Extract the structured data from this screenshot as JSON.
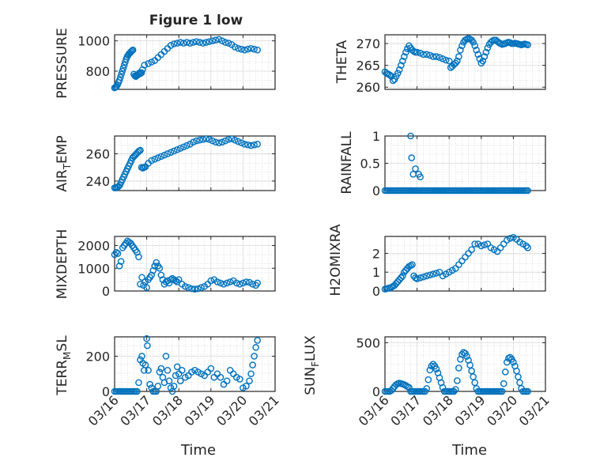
{
  "figure": {
    "title": "Figure 1 low",
    "xlabel": "Time",
    "x_tick_labels": [
      "03/16",
      "03/17",
      "03/18",
      "03/19",
      "03/20",
      "03/21"
    ],
    "colors": {
      "marker": "#0072bd",
      "axis": "#262626",
      "grid": "#c8c8c8",
      "background": "#ffffff"
    }
  },
  "chart_data": [
    {
      "type": "scatter",
      "id": "pressure",
      "ylabel": "PRESSURE",
      "yticks": [
        800,
        1000
      ],
      "ylim": [
        680,
        1040
      ],
      "xlim": [
        0,
        5
      ],
      "grid": true,
      "x": [
        0.0,
        0.03,
        0.06,
        0.09,
        0.12,
        0.15,
        0.18,
        0.21,
        0.24,
        0.27,
        0.3,
        0.33,
        0.36,
        0.39,
        0.42,
        0.45,
        0.48,
        0.51,
        0.54,
        0.57,
        0.6,
        0.63,
        0.66,
        0.69,
        0.72,
        0.75,
        0.78,
        0.81,
        0.84,
        0.87,
        0.93,
        1.05,
        1.15,
        1.25,
        1.35,
        1.45,
        1.55,
        1.65,
        1.75,
        1.85,
        1.95,
        2.05,
        2.15,
        2.25,
        2.35,
        2.45,
        2.55,
        2.65,
        2.75,
        2.85,
        2.95,
        3.05,
        3.15,
        3.25,
        3.35,
        3.45,
        3.55,
        3.65,
        3.75,
        3.85,
        3.95,
        4.05,
        4.15,
        4.25,
        4.35,
        4.45
      ],
      "y": [
        690,
        695,
        700,
        710,
        725,
        740,
        760,
        780,
        800,
        820,
        840,
        860,
        880,
        895,
        905,
        915,
        920,
        928,
        935,
        940,
        780,
        770,
        765,
        770,
        775,
        780,
        790,
        785,
        790,
        810,
        840,
        850,
        860,
        870,
        890,
        910,
        930,
        950,
        970,
        980,
        985,
        990,
        985,
        990,
        985,
        990,
        995,
        990,
        985,
        990,
        995,
        1000,
        1005,
        1010,
        1000,
        990,
        985,
        975,
        960,
        950,
        945,
        940,
        945,
        950,
        945,
        940
      ]
    },
    {
      "type": "scatter",
      "id": "theta",
      "ylabel": "THETA",
      "yticks": [
        260,
        265,
        270
      ],
      "ylim": [
        259.5,
        272
      ],
      "xlim": [
        0,
        5
      ],
      "grid": true,
      "x": [
        0.0,
        0.05,
        0.1,
        0.15,
        0.2,
        0.25,
        0.3,
        0.35,
        0.4,
        0.45,
        0.5,
        0.55,
        0.6,
        0.65,
        0.7,
        0.75,
        0.8,
        0.85,
        0.9,
        0.95,
        1.0,
        1.1,
        1.2,
        1.3,
        1.4,
        1.5,
        1.6,
        1.7,
        1.8,
        1.9,
        2.0,
        2.05,
        2.1,
        2.15,
        2.2,
        2.25,
        2.3,
        2.35,
        2.4,
        2.45,
        2.5,
        2.55,
        2.6,
        2.65,
        2.7,
        2.75,
        2.8,
        2.85,
        2.9,
        2.95,
        3.0,
        3.05,
        3.1,
        3.15,
        3.2,
        3.25,
        3.3,
        3.35,
        3.4,
        3.45,
        3.5,
        3.55,
        3.6,
        3.65,
        3.7,
        3.75,
        3.8,
        3.85,
        3.9,
        3.95,
        4.0,
        4.05,
        4.1,
        4.15,
        4.2,
        4.25,
        4.3,
        4.35,
        4.4,
        4.45
      ],
      "y": [
        263.5,
        263.2,
        263.0,
        262.8,
        262.5,
        261.5,
        261.8,
        262.5,
        263.2,
        264.0,
        265.0,
        266.0,
        267.0,
        268.0,
        268.8,
        269.5,
        269.0,
        268.5,
        268.2,
        268.0,
        268.0,
        267.8,
        267.5,
        267.5,
        267.3,
        267.0,
        267.0,
        266.8,
        266.5,
        266.2,
        266.0,
        264.5,
        264.8,
        265.2,
        265.5,
        266.0,
        267.0,
        268.5,
        269.5,
        270.3,
        270.8,
        271.0,
        271.2,
        271.0,
        270.8,
        270.3,
        269.5,
        268.5,
        267.5,
        266.5,
        265.5,
        266.0,
        267.0,
        268.0,
        269.0,
        269.8,
        270.3,
        270.6,
        270.8,
        270.8,
        270.5,
        270.2,
        270.0,
        269.8,
        269.9,
        270.0,
        270.2,
        270.3,
        270.2,
        270.0,
        270.0,
        270.1,
        270.0,
        269.9,
        269.8,
        269.7,
        269.8,
        269.9,
        269.8,
        269.7
      ]
    },
    {
      "type": "scatter",
      "id": "air_temp",
      "ylabel": "AIR_TEMP",
      "yticks": [
        240,
        260
      ],
      "ylim": [
        233,
        273
      ],
      "xlim": [
        0,
        5
      ],
      "grid": true,
      "x": [
        0.0,
        0.04,
        0.08,
        0.12,
        0.16,
        0.2,
        0.24,
        0.28,
        0.32,
        0.36,
        0.4,
        0.44,
        0.48,
        0.52,
        0.56,
        0.6,
        0.64,
        0.68,
        0.72,
        0.76,
        0.8,
        0.84,
        0.88,
        0.92,
        0.96,
        1.05,
        1.15,
        1.25,
        1.35,
        1.45,
        1.55,
        1.65,
        1.75,
        1.85,
        1.95,
        2.05,
        2.15,
        2.25,
        2.35,
        2.45,
        2.55,
        2.65,
        2.75,
        2.85,
        2.95,
        3.05,
        3.15,
        3.25,
        3.35,
        3.45,
        3.55,
        3.65,
        3.75,
        3.85,
        3.95,
        4.05,
        4.15,
        4.25,
        4.35,
        4.45
      ],
      "y": [
        235,
        235,
        235.5,
        236,
        237,
        239,
        241,
        243,
        245,
        247,
        249,
        251,
        253,
        255,
        257,
        258,
        259,
        260,
        261,
        262,
        262.5,
        250,
        249.5,
        250,
        250.5,
        253,
        255,
        256,
        257,
        258,
        259,
        260,
        261,
        262,
        263,
        264,
        265,
        266,
        267,
        268.5,
        269.5,
        270,
        270.5,
        271,
        270.5,
        269.5,
        268.5,
        268,
        268.5,
        269.5,
        270.5,
        271,
        270,
        269,
        268,
        267,
        266.5,
        266,
        266.5,
        267
      ]
    },
    {
      "type": "scatter",
      "id": "rainfall",
      "ylabel": "RAINFALL",
      "yticks": [
        0,
        0.5,
        1
      ],
      "ylim": [
        0,
        1
      ],
      "xlim": [
        0,
        5
      ],
      "grid": true,
      "x": [
        0.0,
        0.05,
        0.1,
        0.15,
        0.2,
        0.25,
        0.3,
        0.35,
        0.4,
        0.45,
        0.5,
        0.55,
        0.6,
        0.65,
        0.7,
        0.75,
        0.8,
        0.85,
        0.9,
        0.95,
        1.0,
        1.05,
        1.1,
        1.15,
        1.2,
        1.25,
        1.3,
        1.35,
        1.4,
        1.45,
        1.5,
        1.55,
        1.6,
        1.65,
        1.7,
        1.75,
        1.8,
        1.85,
        1.9,
        1.95,
        2.0,
        2.05,
        2.1,
        2.15,
        2.2,
        2.25,
        2.3,
        2.35,
        2.4,
        2.45,
        2.5,
        2.55,
        2.6,
        2.65,
        2.7,
        2.75,
        2.8,
        2.85,
        2.9,
        2.95,
        3.0,
        3.05,
        3.1,
        3.15,
        3.2,
        3.25,
        3.3,
        3.35,
        3.4,
        3.45,
        3.5,
        3.55,
        3.6,
        3.65,
        3.7,
        3.75,
        3.8,
        3.85,
        3.9,
        3.95,
        4.0,
        4.05,
        4.1,
        4.15,
        4.2,
        4.25,
        4.3,
        4.35,
        4.4,
        4.45,
        0.8,
        0.83,
        0.88,
        0.95,
        1.05,
        1.1
      ],
      "y": [
        0,
        0,
        0,
        0,
        0,
        0,
        0,
        0,
        0,
        0,
        0,
        0,
        0,
        0,
        0,
        0,
        0,
        0,
        0,
        0,
        0,
        0,
        0,
        0,
        0,
        0,
        0,
        0,
        0,
        0,
        0,
        0,
        0,
        0,
        0,
        0,
        0,
        0,
        0,
        0,
        0,
        0,
        0,
        0,
        0,
        0,
        0,
        0,
        0,
        0,
        0,
        0,
        0,
        0,
        0,
        0,
        0,
        0,
        0,
        0,
        0,
        0,
        0,
        0,
        0,
        0,
        0,
        0,
        0,
        0,
        0,
        0,
        0,
        0,
        0,
        0,
        0,
        0,
        0,
        0,
        0,
        0,
        0,
        0,
        0,
        0,
        0,
        0,
        0,
        0,
        1.0,
        0.6,
        0.3,
        0.4,
        0.3,
        0.25
      ]
    },
    {
      "type": "scatter",
      "id": "mixdepth",
      "ylabel": "MIXDEPTH",
      "yticks": [
        0,
        1000,
        2000
      ],
      "ylim": [
        0,
        2400
      ],
      "xlim": [
        0,
        5
      ],
      "grid": true,
      "x": [
        0.0,
        0.05,
        0.1,
        0.15,
        0.2,
        0.25,
        0.3,
        0.35,
        0.4,
        0.45,
        0.5,
        0.55,
        0.6,
        0.65,
        0.7,
        0.75,
        0.8,
        0.85,
        0.9,
        0.95,
        1.0,
        1.05,
        1.1,
        1.15,
        1.2,
        1.25,
        1.3,
        1.35,
        1.4,
        1.45,
        1.5,
        1.55,
        1.6,
        1.65,
        1.7,
        1.75,
        1.8,
        1.85,
        1.9,
        1.95,
        2.0,
        2.1,
        2.2,
        2.3,
        2.4,
        2.5,
        2.6,
        2.7,
        2.8,
        2.9,
        3.0,
        3.1,
        3.2,
        3.3,
        3.4,
        3.5,
        3.6,
        3.7,
        3.8,
        3.9,
        4.0,
        4.1,
        4.2,
        4.3,
        4.4,
        4.45
      ],
      "y": [
        1600,
        1700,
        1650,
        1100,
        1300,
        1900,
        2000,
        2100,
        2200,
        2150,
        2100,
        2000,
        1900,
        1800,
        1700,
        1500,
        300,
        600,
        250,
        400,
        150,
        500,
        600,
        700,
        900,
        1100,
        1250,
        1100,
        1000,
        700,
        500,
        300,
        400,
        450,
        350,
        500,
        550,
        500,
        450,
        400,
        500,
        300,
        200,
        150,
        100,
        80,
        100,
        150,
        200,
        300,
        450,
        500,
        400,
        350,
        300,
        350,
        400,
        450,
        350,
        300,
        350,
        400,
        380,
        300,
        250,
        350
      ]
    },
    {
      "type": "scatter",
      "id": "h2omixra",
      "ylabel": "H2OMIXRA",
      "yticks": [
        0,
        1,
        2
      ],
      "ylim": [
        0,
        2.9
      ],
      "xlim": [
        0,
        5
      ],
      "grid": true,
      "x": [
        0.0,
        0.05,
        0.1,
        0.15,
        0.2,
        0.25,
        0.3,
        0.35,
        0.4,
        0.45,
        0.5,
        0.55,
        0.6,
        0.65,
        0.7,
        0.75,
        0.8,
        0.85,
        0.9,
        0.95,
        1.0,
        1.1,
        1.2,
        1.3,
        1.4,
        1.5,
        1.6,
        1.7,
        1.8,
        1.9,
        2.0,
        2.1,
        2.2,
        2.3,
        2.4,
        2.5,
        2.6,
        2.7,
        2.8,
        2.9,
        3.0,
        3.1,
        3.2,
        3.3,
        3.4,
        3.5,
        3.6,
        3.7,
        3.8,
        3.9,
        4.0,
        4.1,
        4.2,
        4.3,
        4.4,
        4.45
      ],
      "y": [
        0.1,
        0.12,
        0.15,
        0.15,
        0.2,
        0.25,
        0.3,
        0.4,
        0.5,
        0.6,
        0.7,
        0.8,
        1.0,
        1.1,
        1.2,
        1.3,
        1.35,
        1.4,
        0.8,
        0.7,
        0.65,
        0.7,
        0.75,
        0.8,
        0.85,
        0.9,
        0.95,
        1.0,
        0.8,
        0.9,
        1.0,
        1.1,
        1.2,
        1.4,
        1.6,
        1.8,
        2.0,
        2.2,
        2.5,
        2.5,
        2.4,
        2.45,
        2.5,
        2.3,
        2.2,
        2.1,
        2.3,
        2.5,
        2.7,
        2.8,
        2.85,
        2.75,
        2.6,
        2.5,
        2.4,
        2.3
      ]
    },
    {
      "type": "scatter",
      "id": "terr_msl",
      "ylabel": "TERR_MSL",
      "yticks": [
        0,
        200
      ],
      "ylim": [
        0,
        310
      ],
      "xlim": [
        0,
        5
      ],
      "grid": true,
      "x": [
        0.0,
        0.05,
        0.1,
        0.15,
        0.2,
        0.25,
        0.3,
        0.35,
        0.4,
        0.45,
        0.5,
        0.55,
        0.6,
        0.65,
        0.7,
        0.75,
        0.8,
        0.85,
        0.88,
        0.92,
        0.96,
        1.0,
        1.02,
        1.05,
        1.1,
        1.15,
        1.2,
        1.25,
        1.3,
        1.35,
        1.4,
        1.45,
        1.5,
        1.55,
        1.6,
        1.65,
        1.7,
        1.75,
        1.8,
        1.85,
        1.9,
        1.95,
        2.0,
        2.05,
        2.1,
        2.2,
        2.3,
        2.4,
        2.5,
        2.6,
        2.7,
        2.8,
        2.9,
        3.0,
        3.1,
        3.2,
        3.3,
        3.4,
        3.5,
        3.6,
        3.7,
        3.8,
        3.9,
        4.0,
        4.1,
        4.2,
        4.25,
        4.3,
        4.35,
        4.4,
        4.45
      ],
      "y": [
        0,
        0,
        0,
        0,
        0,
        0,
        0,
        0,
        0,
        0,
        0,
        0,
        0,
        0,
        0,
        50,
        180,
        200,
        160,
        120,
        150,
        300,
        260,
        120,
        40,
        20,
        0,
        0,
        0,
        30,
        110,
        130,
        80,
        50,
        200,
        120,
        60,
        20,
        0,
        30,
        90,
        140,
        100,
        60,
        120,
        80,
        90,
        110,
        120,
        110,
        100,
        90,
        110,
        130,
        80,
        100,
        80,
        40,
        60,
        120,
        100,
        80,
        70,
        20,
        30,
        60,
        100,
        150,
        200,
        250,
        290
      ]
    },
    {
      "type": "scatter",
      "id": "sun_flux",
      "ylabel": "SUN_FLUX",
      "yticks": [
        0,
        500
      ],
      "ylim": [
        0,
        560
      ],
      "xlim": [
        0,
        5
      ],
      "grid": true,
      "x": [
        0.0,
        0.05,
        0.1,
        0.15,
        0.2,
        0.25,
        0.3,
        0.35,
        0.4,
        0.45,
        0.5,
        0.55,
        0.6,
        0.65,
        0.7,
        0.75,
        0.8,
        0.85,
        0.9,
        0.95,
        1.0,
        1.05,
        1.1,
        1.15,
        1.2,
        1.25,
        1.3,
        1.35,
        1.4,
        1.45,
        1.5,
        1.55,
        1.6,
        1.65,
        1.7,
        1.75,
        1.8,
        1.85,
        1.9,
        1.95,
        2.0,
        2.05,
        2.1,
        2.15,
        2.2,
        2.25,
        2.3,
        2.35,
        2.4,
        2.45,
        2.5,
        2.55,
        2.6,
        2.65,
        2.7,
        2.75,
        2.8,
        2.85,
        2.9,
        2.95,
        3.0,
        3.05,
        3.1,
        3.15,
        3.2,
        3.25,
        3.3,
        3.35,
        3.4,
        3.45,
        3.5,
        3.55,
        3.6,
        3.65,
        3.7,
        3.75,
        3.8,
        3.85,
        3.9,
        3.95,
        4.0,
        4.05,
        4.1,
        4.15,
        4.2,
        4.25,
        4.3,
        4.35,
        4.4,
        4.45
      ],
      "y": [
        0,
        0,
        0,
        0,
        10,
        30,
        50,
        70,
        80,
        85,
        80,
        75,
        70,
        60,
        50,
        40,
        0,
        0,
        0,
        0,
        0,
        0,
        0,
        0,
        0,
        0,
        30,
        120,
        220,
        260,
        280,
        260,
        230,
        190,
        140,
        90,
        40,
        0,
        0,
        0,
        0,
        0,
        0,
        0,
        20,
        110,
        240,
        330,
        380,
        400,
        390,
        360,
        320,
        270,
        210,
        150,
        90,
        30,
        0,
        0,
        0,
        0,
        0,
        0,
        0,
        0,
        0,
        0,
        0,
        0,
        0,
        0,
        0,
        0,
        80,
        200,
        300,
        340,
        350,
        330,
        300,
        260,
        210,
        150,
        90,
        30,
        0,
        0,
        0,
        0
      ]
    }
  ]
}
